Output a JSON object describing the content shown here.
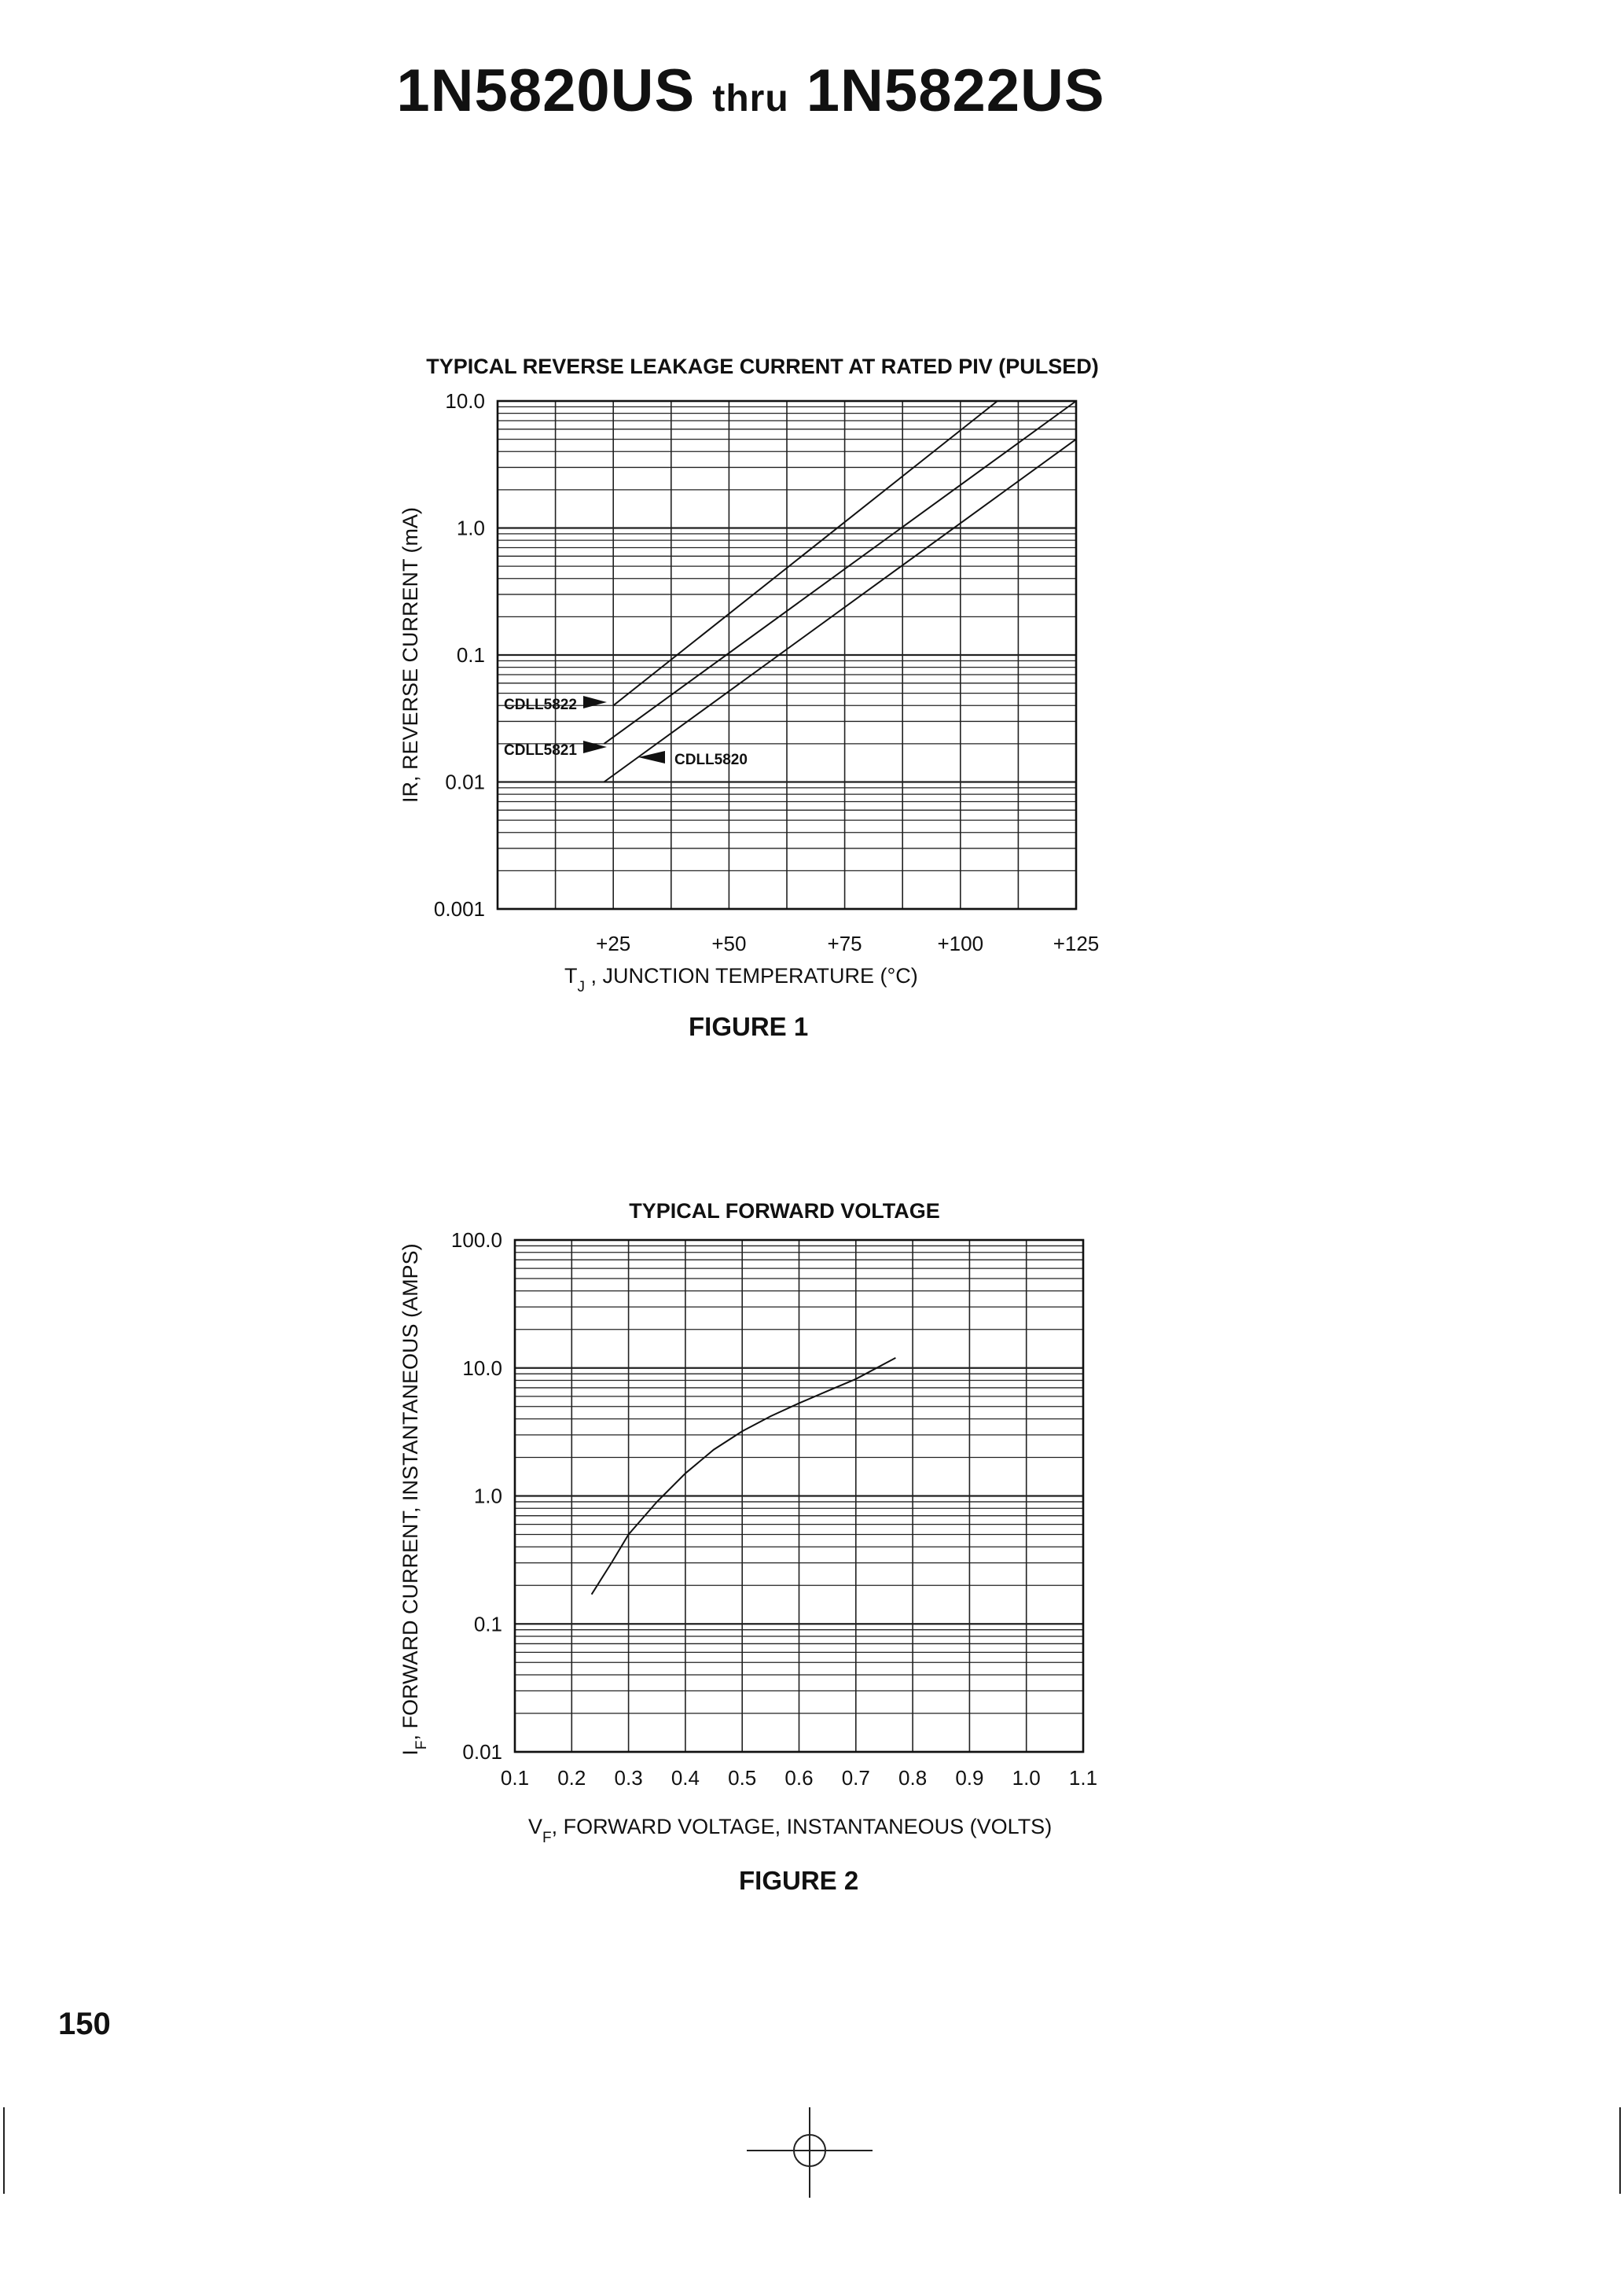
{
  "header": {
    "part_start": "1N5820US",
    "thru": "thru",
    "part_end": "1N5822US"
  },
  "page_number": "150",
  "figures": [
    {
      "caption": "FIGURE 1"
    },
    {
      "caption": "FIGURE 2"
    }
  ],
  "chart_data": [
    {
      "type": "line",
      "title": "TYPICAL REVERSE LEAKAGE CURRENT AT RATED PIV (PULSED)",
      "xlabel_main": "T",
      "xlabel_sub": "J",
      "xlabel_rest": " , JUNCTION TEMPERATURE (°C)",
      "ylabel": "IR, REVERSE CURRENT (mA)",
      "y_scale": "log",
      "ylim": [
        0.001,
        10.0
      ],
      "xlim": [
        0,
        125
      ],
      "x_ticks": [
        25,
        50,
        75,
        100,
        125
      ],
      "x_tick_labels": [
        "+25",
        "+50",
        "+75",
        "+100",
        "+125"
      ],
      "y_ticks": [
        0.001,
        0.01,
        0.1,
        1.0,
        10.0
      ],
      "y_tick_labels": [
        "0.001",
        "0.01",
        "0.1",
        "1.0",
        "10.0"
      ],
      "grid": true,
      "series": [
        {
          "name": "CDLL5822",
          "x": [
            25,
            108
          ],
          "y": [
            0.04,
            10.0
          ]
        },
        {
          "name": "CDLL5821",
          "x": [
            23,
            125
          ],
          "y": [
            0.02,
            10.0
          ]
        },
        {
          "name": "CDLL5820",
          "x": [
            23,
            125
          ],
          "y": [
            0.01,
            5.0
          ]
        }
      ]
    },
    {
      "type": "line",
      "title": "TYPICAL FORWARD VOLTAGE",
      "xlabel_main": "V",
      "xlabel_sub": "F",
      "xlabel_rest": ", FORWARD VOLTAGE, INSTANTANEOUS (VOLTS)",
      "ylabel_main": "I",
      "ylabel_sub": "F",
      "ylabel_rest": ", FORWARD CURRENT, INSTANTANEOUS (AMPS)",
      "y_scale": "log",
      "ylim": [
        0.01,
        100.0
      ],
      "xlim": [
        0.1,
        1.1
      ],
      "x_ticks": [
        0.1,
        0.2,
        0.3,
        0.4,
        0.5,
        0.6,
        0.7,
        0.8,
        0.9,
        1.0,
        1.1
      ],
      "x_tick_labels": [
        "0.1",
        "0.2",
        "0.3",
        "0.4",
        "0.5",
        "0.6",
        "0.7",
        "0.8",
        "0.9",
        "1.0",
        "1.1"
      ],
      "y_ticks": [
        0.01,
        0.1,
        1.0,
        10.0,
        100.0
      ],
      "y_tick_labels": [
        "0.01",
        "0.1",
        "1.0",
        "10.0",
        "100.0"
      ],
      "grid": true,
      "series": [
        {
          "x": [
            0.235,
            0.27,
            0.3,
            0.35,
            0.4,
            0.45,
            0.5,
            0.55,
            0.6,
            0.65,
            0.7,
            0.77
          ],
          "y": [
            0.17,
            0.3,
            0.5,
            0.9,
            1.5,
            2.3,
            3.2,
            4.2,
            5.3,
            6.6,
            8.2,
            12.0
          ]
        }
      ]
    }
  ]
}
